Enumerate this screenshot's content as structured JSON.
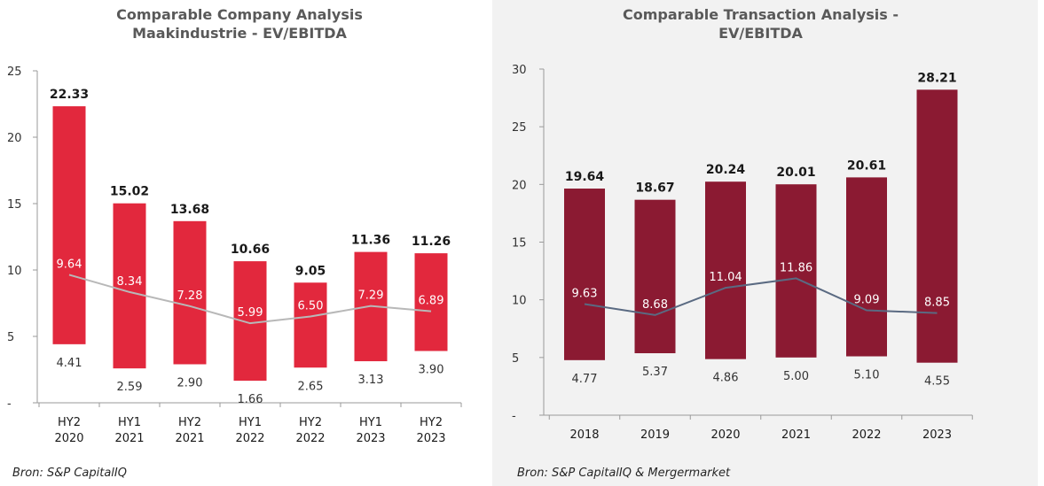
{
  "colors": {
    "left_bar": "#e2283d",
    "left_line": "#b8b8b8",
    "right_bar": "#8b1a32",
    "right_line": "#5a6a82"
  },
  "chart_data": [
    {
      "type": "bar",
      "title_lines": [
        "Comparable Company Analysis",
        "Maakindustrie - EV/EBITDA"
      ],
      "source": "Bron: S&P CapitalIQ",
      "ylim": [
        0,
        25
      ],
      "yticks": [
        0,
        5,
        10,
        15,
        20,
        25
      ],
      "ytick_labels": [
        "-",
        "5",
        "10",
        "15",
        "20",
        "25"
      ],
      "categories": [
        [
          "HY2",
          "2020"
        ],
        [
          "HY1",
          "2021"
        ],
        [
          "HY2",
          "2021"
        ],
        [
          "HY1",
          "2022"
        ],
        [
          "HY2",
          "2022"
        ],
        [
          "HY1",
          "2023"
        ],
        [
          "HY2",
          "2023"
        ]
      ],
      "high": [
        22.33,
        15.02,
        13.68,
        10.66,
        9.05,
        11.36,
        11.26
      ],
      "median": [
        9.64,
        8.34,
        7.28,
        5.99,
        6.5,
        7.29,
        6.89
      ],
      "low": [
        4.41,
        2.59,
        2.9,
        1.66,
        2.65,
        3.13,
        3.9
      ],
      "high_labels": [
        "22.33",
        "15.02",
        "13.68",
        "10.66",
        "9.05",
        "11.36",
        "11.26"
      ],
      "median_labels": [
        "9.64",
        "8.34",
        "7.28",
        "5.99",
        "6.50",
        "7.29",
        "6.89"
      ],
      "low_labels": [
        "4.41",
        "2.59",
        "2.90",
        "1.66",
        "2.65",
        "3.13",
        "3.90"
      ]
    },
    {
      "type": "bar",
      "title_lines": [
        "Comparable Transaction Analysis -",
        "EV/EBITDA"
      ],
      "source": "Bron: S&P CapitalIQ & Mergermarket",
      "ylim": [
        0,
        30
      ],
      "yticks": [
        0,
        5,
        10,
        15,
        20,
        25,
        30
      ],
      "ytick_labels": [
        "-",
        "5",
        "10",
        "15",
        "20",
        "25",
        "30"
      ],
      "categories": [
        [
          "2018"
        ],
        [
          "2019"
        ],
        [
          "2020"
        ],
        [
          "2021"
        ],
        [
          "2022"
        ],
        [
          "2023"
        ]
      ],
      "high": [
        19.64,
        18.67,
        20.24,
        20.01,
        20.61,
        28.21
      ],
      "median": [
        9.63,
        8.68,
        11.04,
        11.86,
        9.09,
        8.85
      ],
      "low": [
        4.77,
        5.37,
        4.86,
        5.0,
        5.1,
        4.55
      ],
      "high_labels": [
        "19.64",
        "18.67",
        "20.24",
        "20.01",
        "20.61",
        "28.21"
      ],
      "median_labels": [
        "9.63",
        "8.68",
        "11.04",
        "11.86",
        "9.09",
        "8.85"
      ],
      "low_labels": [
        "4.77",
        "5.37",
        "4.86",
        "5.00",
        "5.10",
        "4.55"
      ]
    }
  ]
}
